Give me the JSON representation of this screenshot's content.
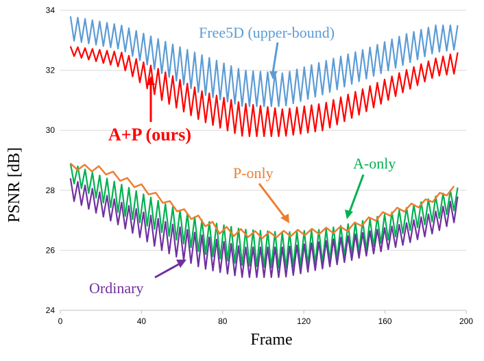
{
  "chart_data": {
    "type": "line",
    "xlabel": "Frame",
    "ylabel": "PSNR [dB]",
    "xlim": [
      0,
      200
    ],
    "ylim": [
      24,
      34
    ],
    "x_ticks": [
      "0",
      "40",
      "80",
      "120",
      "160",
      "200"
    ],
    "y_ticks": [
      "24",
      "26",
      "28",
      "30",
      "32",
      "34"
    ],
    "grid": "horizontal",
    "series": [
      {
        "name": "Free5D (upper-bound)",
        "color": "#5b9bd5",
        "x_start": 5,
        "x_end": 196,
        "oscillation_period": 3.6,
        "upper_envelope": [
          [
            5,
            33.8
          ],
          [
            30,
            33.5
          ],
          [
            50,
            33.0
          ],
          [
            70,
            32.5
          ],
          [
            90,
            32.0
          ],
          [
            110,
            31.9
          ],
          [
            130,
            32.3
          ],
          [
            150,
            32.7
          ],
          [
            170,
            33.2
          ],
          [
            185,
            33.5
          ],
          [
            196,
            33.5
          ]
        ],
        "lower_envelope": [
          [
            5,
            33.0
          ],
          [
            30,
            32.7
          ],
          [
            50,
            31.9
          ],
          [
            70,
            31.2
          ],
          [
            90,
            30.8
          ],
          [
            110,
            30.8
          ],
          [
            130,
            31.2
          ],
          [
            150,
            31.7
          ],
          [
            170,
            32.2
          ],
          [
            185,
            32.6
          ],
          [
            196,
            32.7
          ]
        ],
        "label": "Free5D (upper-bound)"
      },
      {
        "name": "A+P (ours)",
        "color": "#ff0000",
        "x_start": 5,
        "x_end": 196,
        "oscillation_period": 3.6,
        "upper_envelope": [
          [
            5,
            32.8
          ],
          [
            30,
            32.6
          ],
          [
            50,
            32.0
          ],
          [
            70,
            31.3
          ],
          [
            90,
            30.9
          ],
          [
            110,
            30.7
          ],
          [
            130,
            30.9
          ],
          [
            150,
            31.4
          ],
          [
            170,
            32.0
          ],
          [
            185,
            32.4
          ],
          [
            196,
            32.6
          ]
        ],
        "lower_envelope": [
          [
            5,
            32.5
          ],
          [
            30,
            32.1
          ],
          [
            50,
            31.0
          ],
          [
            70,
            30.3
          ],
          [
            90,
            29.8
          ],
          [
            110,
            29.8
          ],
          [
            130,
            30.0
          ],
          [
            150,
            30.6
          ],
          [
            170,
            31.3
          ],
          [
            185,
            31.8
          ],
          [
            196,
            31.9
          ]
        ],
        "label": "A+P (ours)"
      },
      {
        "name": "A-only",
        "color": "#00b050",
        "x_start": 5,
        "x_end": 196,
        "oscillation_period": 3.6,
        "upper_envelope": [
          [
            5,
            28.9
          ],
          [
            30,
            28.2
          ],
          [
            50,
            27.6
          ],
          [
            70,
            27.0
          ],
          [
            90,
            26.7
          ],
          [
            110,
            26.6
          ],
          [
            130,
            26.7
          ],
          [
            150,
            27.0
          ],
          [
            170,
            27.4
          ],
          [
            185,
            27.8
          ],
          [
            196,
            28.1
          ]
        ],
        "lower_envelope": [
          [
            5,
            28.3
          ],
          [
            30,
            27.2
          ],
          [
            50,
            26.6
          ],
          [
            70,
            25.9
          ],
          [
            90,
            25.5
          ],
          [
            110,
            25.4
          ],
          [
            130,
            25.6
          ],
          [
            150,
            26.0
          ],
          [
            170,
            26.6
          ],
          [
            185,
            27.0
          ],
          [
            196,
            27.4
          ]
        ],
        "label": "A-only"
      },
      {
        "name": "P-only",
        "color": "#ed7d31",
        "x_start": 5,
        "x_end": 196,
        "oscillation_period": 7,
        "upper_envelope": [
          [
            5,
            28.9
          ],
          [
            20,
            28.8
          ],
          [
            40,
            28.2
          ],
          [
            60,
            27.4
          ],
          [
            80,
            26.8
          ],
          [
            100,
            26.6
          ],
          [
            120,
            26.7
          ],
          [
            140,
            26.8
          ],
          [
            160,
            27.3
          ],
          [
            180,
            27.7
          ],
          [
            196,
            28.2
          ]
        ],
        "lower_envelope": [
          [
            5,
            28.7
          ],
          [
            20,
            28.6
          ],
          [
            40,
            28.0
          ],
          [
            60,
            27.2
          ],
          [
            80,
            26.5
          ],
          [
            100,
            26.4
          ],
          [
            120,
            26.5
          ],
          [
            140,
            26.6
          ],
          [
            160,
            27.1
          ],
          [
            180,
            27.5
          ],
          [
            196,
            28.0
          ]
        ],
        "label": "P-only"
      },
      {
        "name": "Ordinary",
        "color": "#7030a0",
        "x_start": 5,
        "x_end": 196,
        "oscillation_period": 3.6,
        "upper_envelope": [
          [
            5,
            28.4
          ],
          [
            30,
            27.6
          ],
          [
            50,
            27.0
          ],
          [
            70,
            26.5
          ],
          [
            90,
            26.1
          ],
          [
            110,
            26.1
          ],
          [
            130,
            26.3
          ],
          [
            150,
            26.6
          ],
          [
            170,
            26.9
          ],
          [
            185,
            27.3
          ],
          [
            196,
            27.8
          ]
        ],
        "lower_envelope": [
          [
            5,
            27.7
          ],
          [
            30,
            26.8
          ],
          [
            50,
            26.0
          ],
          [
            70,
            25.4
          ],
          [
            90,
            25.1
          ],
          [
            110,
            25.1
          ],
          [
            130,
            25.4
          ],
          [
            150,
            25.8
          ],
          [
            170,
            26.2
          ],
          [
            185,
            26.6
          ],
          [
            196,
            27.0
          ]
        ],
        "label": "Ordinary"
      }
    ],
    "annotations": [
      {
        "series": "Free5D (upper-bound)",
        "text": "Free5D (upper-bound)",
        "color": "#5b9bd5",
        "bold": false
      },
      {
        "series": "A+P (ours)",
        "text": "A+P (ours)",
        "color": "#ff0000",
        "bold": true
      },
      {
        "series": "P-only",
        "text": "P-only",
        "color": "#ed7d31",
        "bold": false
      },
      {
        "series": "A-only",
        "text": "A-only",
        "color": "#00b050",
        "bold": false
      },
      {
        "series": "Ordinary",
        "text": "Ordinary",
        "color": "#7030a0",
        "bold": false
      }
    ]
  }
}
